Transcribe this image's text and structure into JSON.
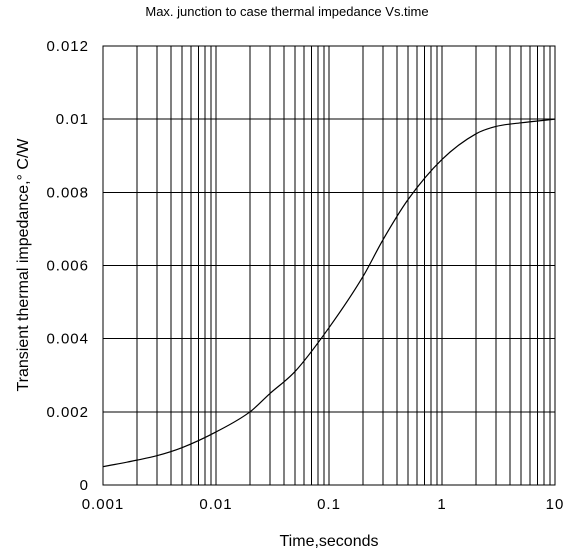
{
  "chart_data": {
    "type": "line",
    "title": "Max. junction to case thermal impedance Vs.time",
    "xlabel": "Time,seconds",
    "ylabel": "Transient thermal impedance,° C/W",
    "xscale": "log",
    "xlim": [
      0.001,
      10
    ],
    "ylim": [
      0,
      0.012
    ],
    "grid": true,
    "x_ticks": [
      "0.001",
      "0.01",
      "0.1",
      "1",
      "10"
    ],
    "y_ticks": [
      "0",
      "0.002",
      "0.004",
      "0.006",
      "0.008",
      "0.01",
      "0.012"
    ],
    "series": [
      {
        "x": [
          0.001,
          0.002,
          0.003,
          0.005,
          0.01,
          0.02,
          0.03,
          0.05,
          0.1,
          0.2,
          0.3,
          0.5,
          1,
          2,
          3,
          5,
          10
        ],
        "y": [
          0.0005,
          0.00068,
          0.0008,
          0.00102,
          0.00145,
          0.002,
          0.0025,
          0.0031,
          0.0043,
          0.0057,
          0.0067,
          0.0078,
          0.0089,
          0.0096,
          0.0098,
          0.0099,
          0.01
        ]
      }
    ]
  }
}
